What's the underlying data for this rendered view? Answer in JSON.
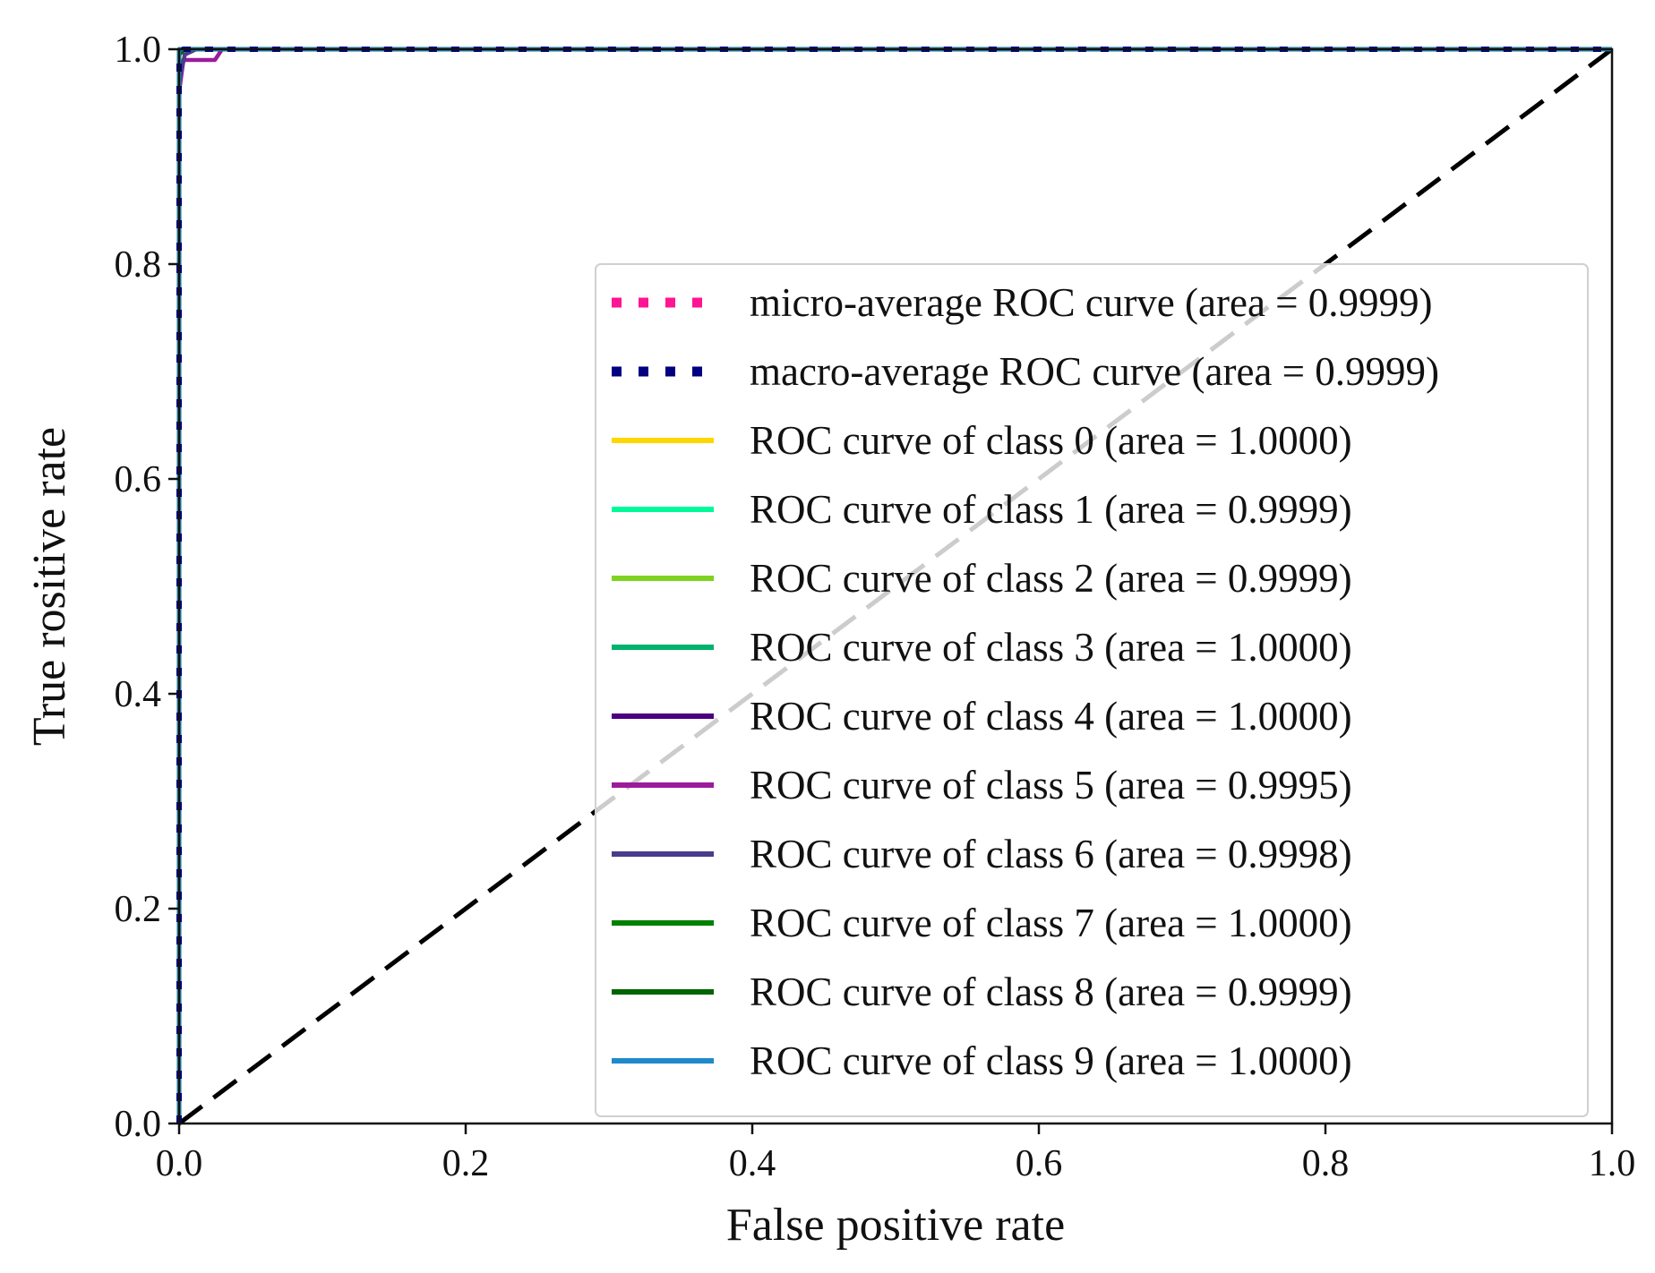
{
  "chart_data": {
    "type": "line",
    "title": "",
    "xlabel": "False positive rate",
    "ylabel": "True rositive rate",
    "xlim": [
      0.0,
      1.0
    ],
    "ylim": [
      0.0,
      1.0
    ],
    "xticks": [
      "0.0",
      "0.2",
      "0.4",
      "0.6",
      "0.8",
      "1.0"
    ],
    "yticks": [
      "0.0",
      "0.2",
      "0.4",
      "0.6",
      "0.8",
      "1.0"
    ],
    "grid": false,
    "legend_position": "lower-right",
    "series": [
      {
        "name": "micro-average ROC curve (area = 0.9999)",
        "color": "#ff1493",
        "style": "dotted",
        "x": [
          0.0,
          0.0,
          0.003,
          1.0
        ],
        "y": [
          0.0,
          0.99,
          1.0,
          1.0
        ]
      },
      {
        "name": "macro-average ROC curve (area = 0.9999)",
        "color": "#000080",
        "style": "dotted",
        "x": [
          0.0,
          0.0,
          0.003,
          1.0
        ],
        "y": [
          0.0,
          0.99,
          1.0,
          1.0
        ]
      },
      {
        "name": "ROC curve of class 0 (area = 1.0000)",
        "color": "#ffd700",
        "style": "solid",
        "x": [
          0.0,
          0.0,
          1.0
        ],
        "y": [
          0.0,
          1.0,
          1.0
        ]
      },
      {
        "name": "ROC curve of class 1 (area = 0.9999)",
        "color": "#00fa9a",
        "style": "solid",
        "x": [
          0.0,
          0.0,
          0.005,
          1.0
        ],
        "y": [
          0.0,
          0.995,
          1.0,
          1.0
        ]
      },
      {
        "name": "ROC curve of class 2 (area = 0.9999)",
        "color": "#7ed321",
        "style": "solid",
        "x": [
          0.0,
          0.0,
          0.006,
          1.0
        ],
        "y": [
          0.0,
          0.995,
          1.0,
          1.0
        ]
      },
      {
        "name": "ROC curve of class 3 (area = 1.0000)",
        "color": "#00b26b",
        "style": "solid",
        "x": [
          0.0,
          0.0,
          1.0
        ],
        "y": [
          0.0,
          1.0,
          1.0
        ]
      },
      {
        "name": "ROC curve of class 4 (area = 1.0000)",
        "color": "#4b0082",
        "style": "solid",
        "x": [
          0.0,
          0.0,
          1.0
        ],
        "y": [
          0.0,
          1.0,
          1.0
        ]
      },
      {
        "name": "ROC curve of class 5 (area = 0.9995)",
        "color": "#9b1b9b",
        "style": "solid",
        "x": [
          0.0,
          0.0,
          0.003,
          0.025,
          0.03,
          1.0
        ],
        "y": [
          0.0,
          0.96,
          0.99,
          0.99,
          1.0,
          1.0
        ]
      },
      {
        "name": "ROC curve of class 6 (area = 0.9998)",
        "color": "#483d8b",
        "style": "solid",
        "x": [
          0.0,
          0.0,
          0.004,
          0.012,
          1.0
        ],
        "y": [
          0.0,
          0.97,
          0.995,
          1.0,
          1.0
        ]
      },
      {
        "name": "ROC curve of class 7 (area = 1.0000)",
        "color": "#008000",
        "style": "solid",
        "x": [
          0.0,
          0.0,
          1.0
        ],
        "y": [
          0.0,
          1.0,
          1.0
        ]
      },
      {
        "name": "ROC curve of class 8 (area = 0.9999)",
        "color": "#006400",
        "style": "solid",
        "x": [
          0.0,
          0.0,
          0.004,
          1.0
        ],
        "y": [
          0.0,
          0.995,
          1.0,
          1.0
        ]
      },
      {
        "name": "ROC curve of class 9 (area = 1.0000)",
        "color": "#1f8ac9",
        "style": "solid",
        "x": [
          0.0,
          0.0,
          1.0
        ],
        "y": [
          0.0,
          1.0,
          1.0
        ]
      }
    ],
    "reference_line": {
      "x": [
        0.0,
        1.0
      ],
      "y": [
        0.0,
        1.0
      ],
      "color": "#000000",
      "style": "dashed"
    }
  }
}
